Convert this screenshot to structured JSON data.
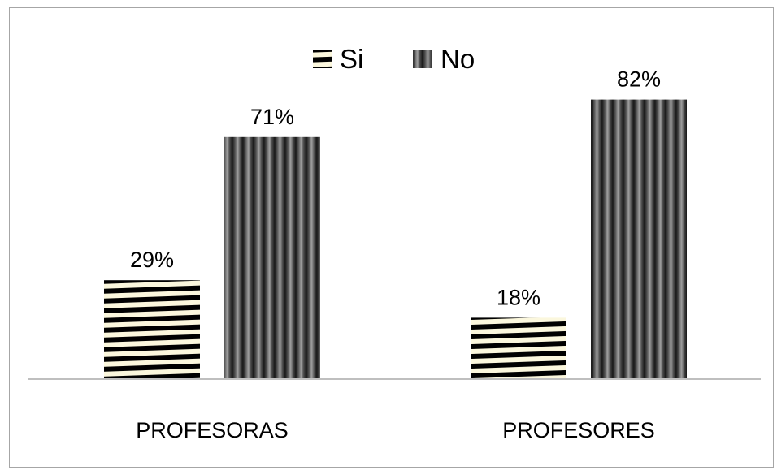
{
  "chart_data": {
    "type": "bar",
    "categories": [
      "PROFESORAS",
      "PROFESORES"
    ],
    "series": [
      {
        "name": "Si",
        "values": [
          29,
          18
        ],
        "labels": [
          "29%",
          "18%"
        ],
        "pattern": "horizontal-stripes",
        "colors": [
          "#fbf7dd",
          "#000000"
        ]
      },
      {
        "name": "No",
        "values": [
          71,
          82
        ],
        "labels": [
          "71%",
          "82%"
        ],
        "pattern": "vertical-stripes",
        "colors": [
          "#8a8a8a",
          "#1c1c1c"
        ]
      }
    ],
    "ylim": [
      0,
      100
    ],
    "grid": false,
    "legend_position": "top-center",
    "axis_color": "#bfbfbf"
  }
}
